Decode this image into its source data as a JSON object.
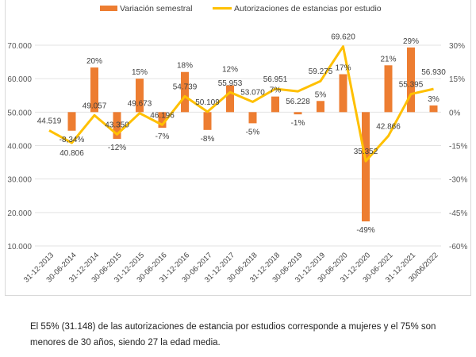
{
  "chart_data": {
    "type": "bar+line",
    "title": "",
    "categories": [
      "31-12-2013",
      "30-06-2014",
      "31-12-2014",
      "30-06-2015",
      "31-12-2015",
      "30-06-2016",
      "31-12-2016",
      "30-06-2017",
      "31-12-2017",
      "30-06-2018",
      "31-12-2018",
      "30-06-2019",
      "31-12-2019",
      "30-06-2020",
      "31-12-2020",
      "30-06-2021",
      "31-12-2021",
      "30/06/2022"
    ],
    "series": [
      {
        "name": "Variación semestral",
        "type": "bar",
        "axis": "right",
        "color": "#ED7D31",
        "values": [
          null,
          -8.34,
          20,
          -12,
          15,
          -7,
          18,
          -8,
          12,
          -5,
          7,
          -1,
          5,
          17,
          -49,
          21,
          29,
          3
        ],
        "labels": [
          "",
          "-8,34%",
          "20%",
          "-12%",
          "15%",
          "-7%",
          "18%",
          "-8%",
          "12%",
          "-5%",
          "7%",
          "-1%",
          "5%",
          "17%",
          "-49%",
          "21%",
          "29%",
          "3%"
        ]
      },
      {
        "name": "Autorizaciones de estancias por estudio",
        "type": "line",
        "axis": "left",
        "color": "#FFC000",
        "values": [
          44519,
          40806,
          49057,
          43350,
          49673,
          46196,
          54739,
          50109,
          55953,
          53070,
          56951,
          56228,
          59275,
          69620,
          35352,
          42866,
          55395,
          56930
        ],
        "labels": [
          "44.519",
          "40.806",
          "49.057",
          "43.350",
          "49.673",
          "46.196",
          "54.739",
          "50.109",
          "55.953",
          "53.070",
          "56.951",
          "56.228",
          "59.275",
          "69.620",
          "35.352",
          "42.866",
          "55.395",
          "56.930"
        ]
      }
    ],
    "left_axis": {
      "range": [
        10000,
        70000
      ],
      "ticks": [
        "10.000",
        "20.000",
        "30.000",
        "40.000",
        "50.000",
        "60.000",
        "70.000"
      ]
    },
    "right_axis": {
      "range": [
        -60,
        30
      ],
      "ticks": [
        "-60%",
        "-45%",
        "-30%",
        "-15%",
        "0%",
        "15%",
        "30%"
      ]
    },
    "grid": true,
    "legend": "top"
  },
  "note": "El 55% (31.148) de las autorizaciones de estancia por estudios corresponde a mujeres y el 75% son menores de 30 años, siendo 27 la edad media."
}
